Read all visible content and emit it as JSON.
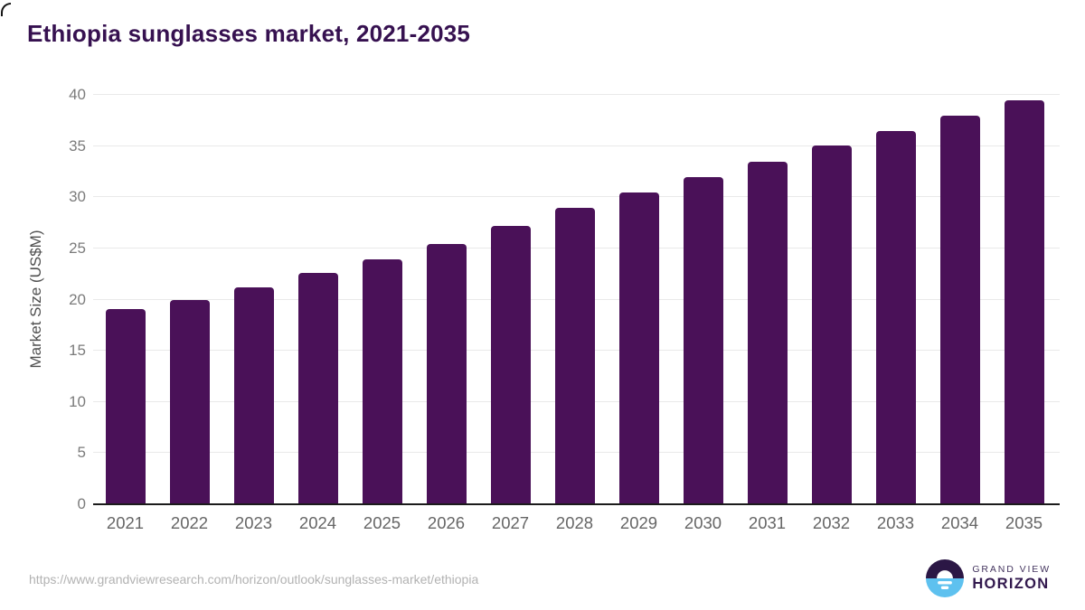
{
  "title": "Ethiopia sunglasses market, 2021-2035",
  "chart_data": {
    "type": "bar",
    "title": "Ethiopia sunglasses market, 2021-2035",
    "categories": [
      "2021",
      "2022",
      "2023",
      "2024",
      "2025",
      "2026",
      "2027",
      "2028",
      "2029",
      "2030",
      "2031",
      "2032",
      "2033",
      "2034",
      "2035"
    ],
    "values": [
      19.1,
      20.0,
      21.2,
      22.6,
      23.9,
      25.4,
      27.2,
      29.0,
      30.5,
      32.0,
      33.5,
      35.1,
      36.5,
      38.0,
      39.5
    ],
    "xlabel": "",
    "ylabel": "Market Size (US$M)",
    "ylim": [
      0,
      40
    ],
    "yticks": [
      0,
      5,
      10,
      15,
      20,
      25,
      30,
      35,
      40
    ],
    "grid": true,
    "legend": "none",
    "bar_color": "#4a1158"
  },
  "footer": {
    "source_url": "https://www.grandviewresearch.com/horizon/outlook/sunglasses-market/ethiopia",
    "brand_line1": "GRAND VIEW",
    "brand_line2": "HORIZON"
  },
  "colors": {
    "bar": "#4a1158",
    "title_text": "#361150",
    "gridline": "#e9e9e9",
    "axis_line": "#1b1b1b",
    "tick_text": "#7b7b7b",
    "logo_dark": "#2b1745",
    "logo_blue": "#5ec1ef"
  }
}
